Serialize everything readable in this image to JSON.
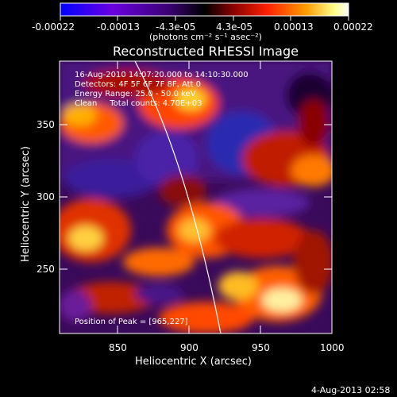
{
  "colorbar": {
    "ticks": [
      "-0.00022",
      "-0.00013",
      "-4.3e-05",
      "4.3e-05",
      "0.00013",
      "0.00022"
    ],
    "units": "(photons cm⁻² s⁻¹ asec⁻²)",
    "colors": [
      "#0000ff",
      "#6a00e0",
      "#3a0070",
      "#000000",
      "#8a0000",
      "#ff2200",
      "#ff9a00",
      "#ffff88",
      "#ffffff"
    ]
  },
  "plot": {
    "title": "Reconstructed RHESSI Image",
    "info_lines": [
      "16-Aug-2010 14:07:20.000 to 14:10:30.000",
      "Detectors: 4F 5F 6F 7F 8F, Att 0",
      "Energy Range: 25.0 - 50.0 keV",
      "Clean     Total counts: 4.70E+03"
    ],
    "peak_text": "Position of Peak = [965,227]",
    "x_axis": {
      "label": "Heliocentric X (arcsec)",
      "ticks": [
        "850",
        "900",
        "950",
        "1000"
      ],
      "range": [
        812,
        1000
      ]
    },
    "y_axis": {
      "label": "Heliocentric Y (arcsec)",
      "ticks": [
        "250",
        "300",
        "350"
      ],
      "range": [
        198,
        386
      ]
    },
    "peak_position": [
      965,
      227
    ]
  },
  "footer": {
    "timestamp": "4-Aug-2013 02:58"
  }
}
